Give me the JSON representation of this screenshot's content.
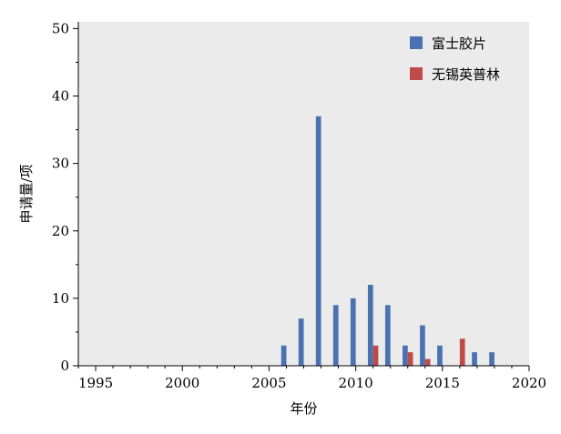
{
  "chart_data": {
    "type": "bar",
    "title": "",
    "xlabel": "年份",
    "ylabel": "申请量/项",
    "xlim": [
      1994,
      2020
    ],
    "ylim": [
      0,
      51
    ],
    "x_ticks": [
      "1995",
      "2000",
      "2005",
      "2010",
      "2015",
      "2020"
    ],
    "y_ticks": [
      "0",
      "10",
      "20",
      "30",
      "40",
      "50"
    ],
    "grid": false,
    "background": "#ebebeb",
    "legend_position": "top-right",
    "series": [
      {
        "name": "富士胶片",
        "color": "#4a72b0",
        "points": [
          {
            "x": 2006,
            "y": 3
          },
          {
            "x": 2007,
            "y": 7
          },
          {
            "x": 2008,
            "y": 37
          },
          {
            "x": 2009,
            "y": 9
          },
          {
            "x": 2010,
            "y": 10
          },
          {
            "x": 2011,
            "y": 12
          },
          {
            "x": 2012,
            "y": 9
          },
          {
            "x": 2013,
            "y": 3
          },
          {
            "x": 2014,
            "y": 6
          },
          {
            "x": 2015,
            "y": 3
          },
          {
            "x": 2017,
            "y": 2
          },
          {
            "x": 2018,
            "y": 2
          }
        ]
      },
      {
        "name": "无锡英普林",
        "color": "#bf4a4a",
        "points": [
          {
            "x": 2011,
            "y": 3
          },
          {
            "x": 2013,
            "y": 2
          },
          {
            "x": 2014,
            "y": 1
          },
          {
            "x": 2016,
            "y": 4
          }
        ]
      }
    ]
  }
}
